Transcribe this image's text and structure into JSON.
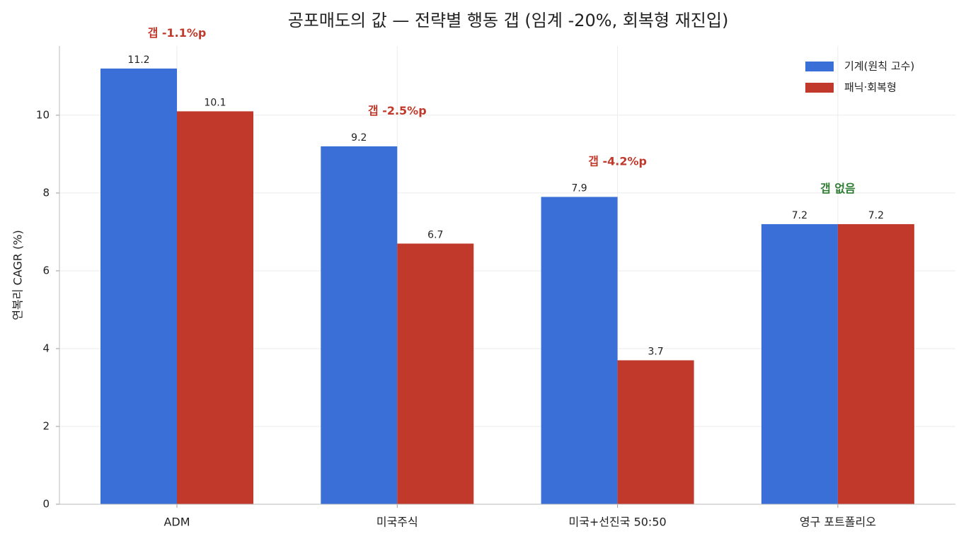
{
  "chart_data": {
    "type": "bar",
    "title": "공포매도의 값 — 전략별 행동 갭 (임계 -20%, 회복형 재진입)",
    "y_label": "연복리 CAGR (%)",
    "categories": [
      "ADM",
      "미국주식",
      "미국+선진국 50:50",
      "영구 포트폴리오"
    ],
    "series": [
      {
        "name": "기계(원칙 고수)",
        "color": "#3a6fd8",
        "values": [
          11.2,
          9.2,
          7.9,
          7.2
        ]
      },
      {
        "name": "패닉·회복형",
        "color": "#c0392b",
        "values": [
          10.1,
          6.7,
          3.7,
          7.2
        ]
      }
    ],
    "annotations": [
      {
        "text": "갭 -1.1%p",
        "color": "#c0392b"
      },
      {
        "text": "갭 -2.5%p",
        "color": "#c0392b"
      },
      {
        "text": "갭 -4.2%p",
        "color": "#c0392b"
      },
      {
        "text": "갭 없음",
        "color": "#2e7d32"
      }
    ],
    "ylim": [
      0,
      11.78
    ],
    "yticks": [
      0,
      2,
      4,
      6,
      8,
      10
    ],
    "grid": true,
    "legend": "upper right"
  }
}
